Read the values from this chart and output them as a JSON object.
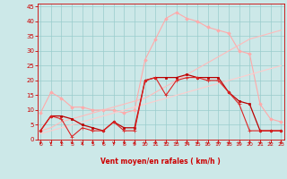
{
  "x": [
    0,
    1,
    2,
    3,
    4,
    5,
    6,
    7,
    8,
    9,
    10,
    11,
    12,
    13,
    14,
    15,
    16,
    17,
    18,
    19,
    20,
    21,
    22,
    23
  ],
  "series": [
    {
      "name": "rafales_max",
      "color": "#ffaaaa",
      "linewidth": 0.8,
      "marker": "D",
      "markersize": 1.8,
      "y": [
        9,
        16,
        14,
        11,
        11,
        10,
        10,
        10,
        9,
        10,
        27,
        34,
        41,
        43,
        41,
        40,
        38,
        37,
        36,
        30,
        29,
        12,
        7,
        6
      ]
    },
    {
      "name": "ligne_upper",
      "color": "#ffbbbb",
      "linewidth": 0.8,
      "marker": null,
      "y": [
        3,
        4,
        6,
        7,
        8,
        9,
        10,
        11,
        12,
        13,
        14,
        16,
        18,
        20,
        22,
        24,
        26,
        28,
        30,
        32,
        34,
        35,
        36,
        37
      ]
    },
    {
      "name": "ligne_lower",
      "color": "#ffcccc",
      "linewidth": 0.8,
      "marker": null,
      "y": [
        2,
        3,
        4,
        5,
        6,
        7,
        8,
        9,
        10,
        11,
        12,
        13,
        14,
        15,
        16,
        17,
        18,
        19,
        20,
        21,
        22,
        23,
        24,
        25
      ]
    },
    {
      "name": "vent_moyen_dark",
      "color": "#bb0000",
      "linewidth": 0.9,
      "marker": "s",
      "markersize": 2.0,
      "y": [
        3,
        8,
        8,
        7,
        5,
        4,
        3,
        6,
        4,
        4,
        20,
        21,
        21,
        21,
        22,
        21,
        21,
        21,
        16,
        13,
        12,
        3,
        3,
        3
      ]
    },
    {
      "name": "vent_moyen_medium",
      "color": "#dd2222",
      "linewidth": 0.8,
      "marker": "+",
      "markersize": 2.5,
      "y": [
        3,
        8,
        7,
        1,
        4,
        3,
        3,
        6,
        3,
        3,
        20,
        21,
        15,
        20,
        21,
        21,
        20,
        20,
        16,
        12,
        3,
        3,
        3,
        3
      ]
    }
  ],
  "xlim": [
    0,
    23
  ],
  "ylim": [
    0,
    46
  ],
  "yticks": [
    0,
    5,
    10,
    15,
    20,
    25,
    30,
    35,
    40,
    45
  ],
  "xticks": [
    0,
    1,
    2,
    3,
    4,
    5,
    6,
    7,
    8,
    9,
    10,
    11,
    12,
    13,
    14,
    15,
    16,
    17,
    18,
    19,
    20,
    21,
    22,
    23
  ],
  "xlabel": "Vent moyen/en rafales ( km/h )",
  "background_color": "#cce8e8",
  "grid_color": "#99cccc",
  "tick_color": "#cc0000",
  "label_color": "#cc0000"
}
